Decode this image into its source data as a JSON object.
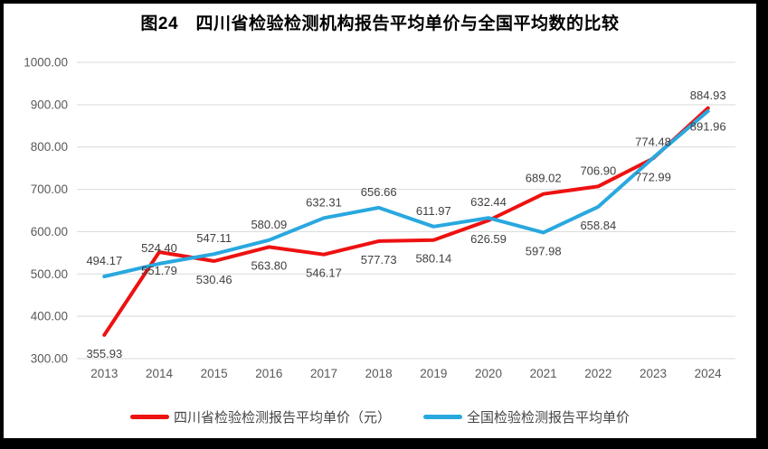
{
  "chart_data": {
    "type": "line",
    "title": "图24　四川省检验检测机构报告平均单价与全国平均数的比较",
    "categories": [
      "2013",
      "2014",
      "2015",
      "2016",
      "2017",
      "2018",
      "2019",
      "2020",
      "2021",
      "2022",
      "2023",
      "2024"
    ],
    "series": [
      {
        "name": "四川省检验检测报告平均单价（元）",
        "color": "#ee1111",
        "values": [
          355.93,
          551.79,
          530.46,
          563.8,
          546.17,
          577.73,
          580.14,
          626.59,
          689.02,
          706.9,
          772.99,
          891.96
        ],
        "label_position": [
          "below",
          "below",
          "below",
          "below",
          "below",
          "below",
          "below",
          "below",
          "above",
          "above",
          "below",
          "below"
        ]
      },
      {
        "name": "全国检验检测报告平均单价",
        "color": "#29a8df",
        "values": [
          494.17,
          524.4,
          547.11,
          580.09,
          632.31,
          656.66,
          611.97,
          632.44,
          597.98,
          658.84,
          774.48,
          884.93
        ],
        "label_position": [
          "above",
          "above",
          "above",
          "above",
          "above",
          "above",
          "above",
          "above",
          "below",
          "below",
          "above",
          "above"
        ]
      }
    ],
    "ylim": [
      300,
      1000
    ],
    "ytick_labels": [
      "1000.00",
      "900.00",
      "800.00",
      "700.00",
      "600.00",
      "500.00",
      "400.00",
      "300.00"
    ],
    "grid": true,
    "legend_position": "bottom",
    "colors": {
      "gridline": "#d9d9d9",
      "tick_text": "#595959",
      "data_label_text": "#404040",
      "title_text": "#000000",
      "frame": "#000000"
    }
  }
}
